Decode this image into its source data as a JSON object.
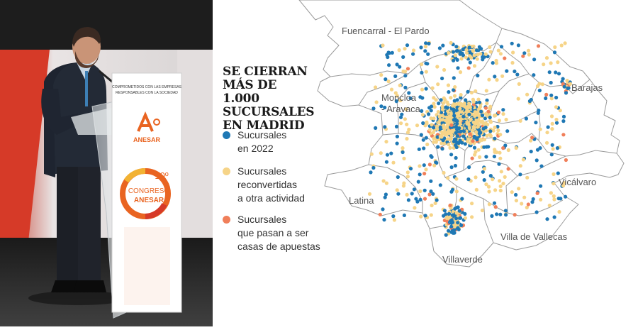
{
  "photo": {
    "banner_text": "COMPROMETIDOS CON LAS EMPRESAS RESPONSABLES CON LA SOCIEDAD",
    "logo_text": "ANESAR",
    "congress_number": "10º",
    "congress_word": "CONGRESO",
    "congress_org": "ANESAR"
  },
  "title": "SE CIERRAN MÁS DE 1.000 SUCURSALES EN MADRID",
  "legend": [
    {
      "label": "Sucursales\nen 2022",
      "color": "#1f78b4"
    },
    {
      "label": "Sucursales\nreconvertidas\na otra actividad",
      "color": "#f6d488"
    },
    {
      "label": "Sucursales\nque pasan a ser\ncasas de apuestas",
      "color": "#f07f5a"
    }
  ],
  "districts": [
    "Fuencarral - El Pardo",
    "Barajas",
    "Moncloa\n- Aravaca",
    "Vicálvaro",
    "Latina",
    "Villa de Vallecas",
    "Villaverde"
  ]
}
